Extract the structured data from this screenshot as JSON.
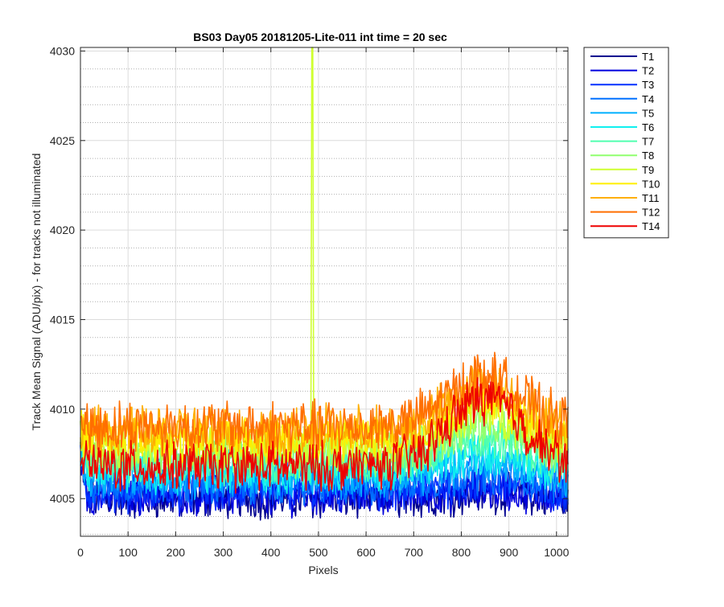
{
  "chart_data": {
    "type": "line",
    "title": "BS03 Day05 20181205-Lite-011 int time = 20 sec",
    "xlabel": "Pixels",
    "ylabel": "Track Mean Signal (ADU/pix) - for tracks not illuminated",
    "xlim": [
      0,
      1024
    ],
    "ylim": [
      4002.9,
      4030.2
    ],
    "xticks": [
      0,
      100,
      200,
      300,
      400,
      500,
      600,
      700,
      800,
      900,
      1000
    ],
    "xtick_labels": [
      "0",
      "100",
      "200",
      "300",
      "400",
      "500",
      "600",
      "700",
      "800",
      "900",
      "1000"
    ],
    "yticks": [
      4005,
      4010,
      4015,
      4020,
      4025,
      4030
    ],
    "ytick_labels": [
      "4005",
      "4010",
      "4015",
      "4020",
      "4025",
      "4030"
    ],
    "grid": true,
    "minor_grid": true,
    "legend_position": "outside-top-right",
    "series": [
      {
        "name": "T1",
        "color": "#00008f",
        "base": 4005.0,
        "amp": 1.0,
        "bump": 0.3
      },
      {
        "name": "T2",
        "color": "#0000df",
        "base": 4005.2,
        "amp": 1.0,
        "bump": 0.3
      },
      {
        "name": "T3",
        "color": "#0030ff",
        "base": 4005.4,
        "amp": 1.0,
        "bump": 0.4
      },
      {
        "name": "T4",
        "color": "#0070ff",
        "base": 4005.8,
        "amp": 1.0,
        "bump": 0.6
      },
      {
        "name": "T5",
        "color": "#00b0ff",
        "base": 4006.2,
        "amp": 1.0,
        "bump": 0.8
      },
      {
        "name": "T6",
        "color": "#10f0ef",
        "base": 4006.6,
        "amp": 1.1,
        "bump": 1.0
      },
      {
        "name": "T7",
        "color": "#50ffaf",
        "base": 4007.0,
        "amp": 1.1,
        "bump": 1.3
      },
      {
        "name": "T8",
        "color": "#90ff6f",
        "base": 4007.4,
        "amp": 1.1,
        "bump": 1.6
      },
      {
        "name": "T9",
        "color": "#cfff30",
        "base": 4007.9,
        "amp": 1.1,
        "bump": 1.9,
        "spike": {
          "x": 487,
          "y": 4030.2
        }
      },
      {
        "name": "T10",
        "color": "#ffef00",
        "base": 4008.3,
        "amp": 1.2,
        "bump": 2.2
      },
      {
        "name": "T11",
        "color": "#ffaf00",
        "base": 4008.8,
        "amp": 1.2,
        "bump": 2.5
      },
      {
        "name": "T12",
        "color": "#ff6f00",
        "base": 4009.0,
        "amp": 1.3,
        "bump": 2.8
      },
      {
        "name": "T14",
        "color": "#ef0000",
        "base": 4006.8,
        "amp": 1.2,
        "bump": 3.8
      }
    ],
    "trend": {
      "note": "signal rises near x=700-950, peaking around x=840",
      "bump_center": 850,
      "bump_width": 110,
      "edge_start": 4009.5
    }
  }
}
